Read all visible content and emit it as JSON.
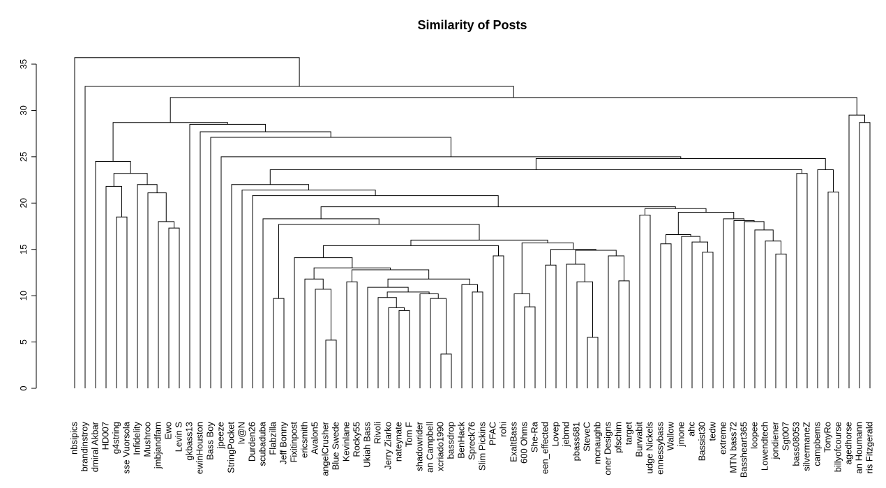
{
  "chart_data": {
    "type": "dendrogram",
    "title": "Similarity of Posts",
    "labels": [
      "nbsipics",
      "brandinstroy",
      "dmiral Akbar",
      "HD007",
      "g4string",
      "sse Vuorsola",
      "Infidelity",
      "Mushroo",
      "jmbjandfam",
      "Ewo",
      "Levin S",
      "gkbass13",
      "ewinHouston",
      "Bass Boy",
      "jpeeze",
      "StringPocket",
      "lv@N",
      "Durden26",
      "scubaduba",
      "Flabzilla",
      "Jeff Bonny",
      "Fixitinpost",
      "ericsmith",
      "Avalon5",
      "angelCrusher",
      "Blue Swede",
      "Kevinlane",
      "Rocky55",
      "Ukiah Bass",
      "Rivoli",
      "Jerry Ziarko",
      "nateynate",
      "Tom F",
      "shadowrider",
      "an Campbell",
      "xcriado1990",
      "bassdrop",
      "BenHack",
      "Spreck76",
      "Slim Pickins",
      "PFAC",
      "rohi",
      "ExaltBass",
      "600 Ohms",
      "She-Ra",
      "een_effected",
      "Lovep",
      "jebmd",
      "pbass681",
      "SteveC",
      "mcnaughb",
      "oner Designs",
      "pfschim",
      "target",
      "Burwabit",
      "udge Nickels",
      "ennessybass",
      "Wallow",
      "jmone",
      "ahc",
      "Bassist30",
      "tedw",
      "extreme",
      "MTN bass72",
      "Bassheart365",
      "loopee",
      "Lowendtech",
      "jondiener",
      "Sgt007",
      "bass08053",
      "silvermaneZ",
      "campbems",
      "TonyRo",
      "billyofcourse",
      "agedhorse",
      "an Houmann",
      "ris Fitzgerald"
    ],
    "merge": [
      [
        -36,
        -37
      ],
      [
        -25,
        -26
      ],
      [
        -50,
        -51
      ],
      [
        -32,
        -33
      ],
      [
        -31,
        4
      ],
      [
        -44,
        -45
      ],
      [
        -20,
        -21
      ],
      [
        -35,
        1
      ],
      [
        -30,
        5
      ],
      [
        -43,
        6
      ],
      [
        -34,
        8
      ],
      [
        -39,
        -40
      ],
      [
        9,
        11
      ],
      [
        -24,
        2
      ],
      [
        -29,
        13
      ],
      [
        -38,
        12
      ],
      [
        -27,
        -28
      ],
      [
        -49,
        3
      ],
      [
        -53,
        -54
      ],
      [
        -23,
        14
      ],
      [
        15,
        16
      ],
      [
        17,
        21
      ],
      [
        20,
        22
      ],
      [
        -46,
        -47
      ],
      [
        -48,
        18
      ],
      [
        -22,
        23
      ],
      [
        -41,
        -42
      ],
      [
        -52,
        19
      ],
      [
        -68,
        -69
      ],
      [
        -61,
        -62
      ],
      [
        25,
        28
      ],
      [
        24,
        31
      ],
      [
        26,
        27
      ],
      [
        -57,
        -58
      ],
      [
        10,
        32
      ],
      [
        -60,
        30
      ],
      [
        -67,
        29
      ],
      [
        33,
        35
      ],
      [
        -59,
        36
      ],
      [
        34,
        39
      ],
      [
        -66,
        37
      ],
      [
        -10,
        -11
      ],
      [
        7,
        38
      ],
      [
        -9,
        42
      ],
      [
        -65,
        41
      ],
      [
        -64,
        45
      ],
      [
        -63,
        46
      ],
      [
        -19,
        43
      ],
      [
        -5,
        -6
      ],
      [
        -55,
        -56
      ],
      [
        40,
        47
      ],
      [
        50,
        51
      ],
      [
        48,
        52
      ],
      [
        -18,
        53
      ],
      [
        -8,
        44
      ],
      [
        -73,
        -74
      ],
      [
        -17,
        54
      ],
      [
        -4,
        49
      ],
      [
        -16,
        57
      ],
      [
        -7,
        55
      ],
      [
        58,
        60
      ],
      [
        -70,
        -71
      ],
      [
        59,
        62
      ],
      [
        -72,
        56
      ],
      [
        -3,
        61
      ],
      [
        63,
        64
      ],
      [
        -15,
        66
      ],
      [
        -14,
        67
      ],
      [
        -13,
        68
      ],
      [
        -12,
        69
      ],
      [
        -76,
        -77
      ],
      [
        65,
        70
      ],
      [
        -75,
        71
      ],
      [
        72,
        73
      ],
      [
        -2,
        74
      ],
      [
        -1,
        75
      ]
    ],
    "height": [
      3.7,
      5.2,
      5.5,
      8.4,
      8.7,
      8.8,
      9.7,
      9.7,
      9.8,
      10.2,
      10.2,
      10.4,
      10.4,
      10.7,
      10.9,
      11.2,
      11.5,
      11.5,
      11.6,
      11.8,
      11.8,
      12.8,
      13.0,
      13.3,
      13.4,
      14.1,
      14.3,
      14.3,
      14.5,
      14.7,
      14.9,
      15.0,
      15.4,
      15.6,
      15.7,
      15.8,
      15.9,
      16.0,
      16.4,
      16.6,
      17.1,
      17.3,
      17.7,
      18.0,
      18.0,
      18.1,
      18.3,
      18.3,
      18.5,
      18.7,
      19.0,
      19.4,
      19.6,
      20.8,
      21.1,
      21.2,
      21.4,
      21.8,
      22.0,
      22.0,
      23.2,
      23.2,
      23.6,
      23.6,
      24.5,
      24.8,
      25.0,
      27.1,
      27.7,
      28.5,
      28.7,
      28.7,
      29.5,
      31.4,
      32.6,
      35.7
    ],
    "ylim": [
      0,
      35
    ],
    "yticks": [
      0,
      5,
      10,
      15,
      20,
      25,
      30,
      35
    ],
    "color": "#000000",
    "highlight_leaves": [
      53,
      54
    ],
    "highlight_color": "#ff0000"
  }
}
